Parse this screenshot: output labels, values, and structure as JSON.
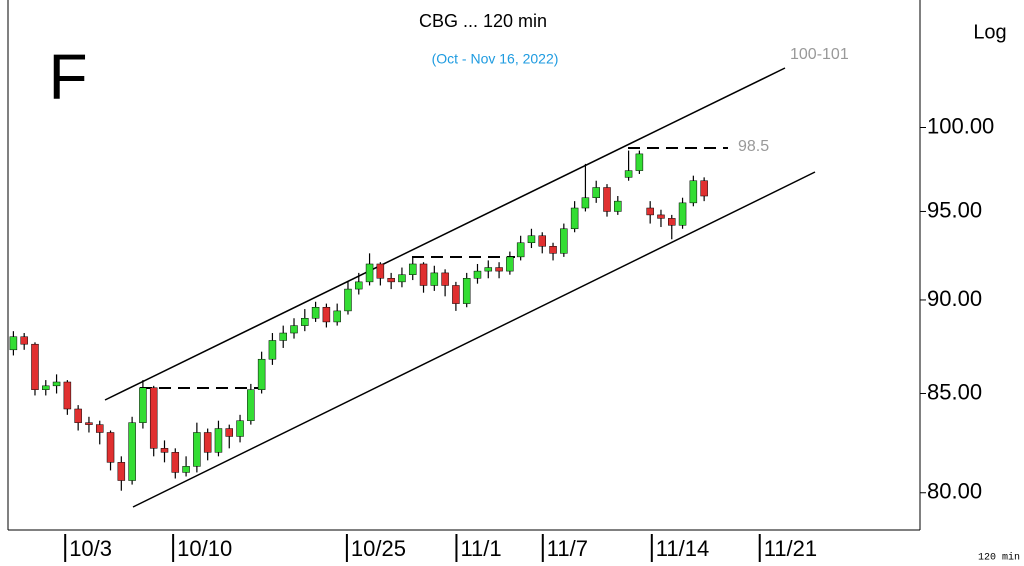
{
  "chart_data": {
    "type": "candlestick",
    "title": "CBG ... 120 min",
    "subtitle": "(Oct - Nov 16, 2022)",
    "panel_letter": "F",
    "scale_label": "Log",
    "interval_label": "120 min",
    "log_scale": true,
    "up_color": "#33dd33",
    "down_color": "#e03030",
    "annotations": [
      "100-101",
      "98.5"
    ],
    "xlim": [
      0,
      169
    ],
    "xticks": [
      {
        "value": 10.6,
        "label": "10/3"
      },
      {
        "value": 30.6,
        "label": "10/10"
      },
      {
        "value": 62.8,
        "label": "10/25"
      },
      {
        "value": 83.1,
        "label": "11/1"
      },
      {
        "value": 99.1,
        "label": "11/7"
      },
      {
        "value": 119.3,
        "label": "11/14"
      },
      {
        "value": 139.3,
        "label": "11/21"
      }
    ],
    "ylim": [
      78.2,
      108.1
    ],
    "yticks": [
      {
        "value": 80,
        "label": "80.00"
      },
      {
        "value": 85,
        "label": "85.00"
      },
      {
        "value": 90,
        "label": "90.00"
      },
      {
        "value": 95,
        "label": "95.00"
      },
      {
        "value": 100,
        "label": "100.00"
      }
    ],
    "x": [
      1,
      3,
      5,
      7,
      9,
      11,
      13,
      15,
      17,
      19,
      21,
      23,
      25,
      27,
      29,
      31,
      33,
      35,
      37,
      39,
      41,
      43,
      45,
      47,
      49,
      51,
      53,
      55,
      57,
      59,
      61,
      63,
      65,
      67,
      69,
      71,
      73,
      75,
      77,
      79,
      81,
      83,
      85,
      87,
      89,
      91,
      93,
      95,
      97,
      99,
      101,
      103,
      105,
      107,
      109,
      111,
      113,
      115,
      117,
      119,
      121,
      123,
      125,
      127,
      129
    ],
    "open": [
      87.3,
      88.0,
      87.6,
      85.2,
      85.4,
      85.6,
      84.2,
      83.5,
      83.4,
      83.0,
      81.5,
      80.6,
      83.5,
      85.3,
      82.2,
      82.0,
      81.0,
      81.3,
      83.0,
      82.0,
      83.2,
      82.8,
      83.6,
      85.2,
      86.8,
      87.8,
      88.2,
      88.6,
      89.0,
      89.6,
      88.8,
      89.4,
      90.6,
      91.0,
      92.0,
      91.2,
      91.0,
      91.4,
      92.0,
      90.8,
      91.5,
      90.8,
      89.8,
      91.2,
      91.6,
      91.8,
      91.6,
      92.4,
      93.2,
      93.6,
      93.0,
      92.6,
      94.0,
      95.2,
      95.8,
      96.4,
      95.0,
      97.0,
      97.4,
      95.2,
      94.8,
      94.6,
      94.2,
      95.5,
      96.8
    ],
    "high": [
      88.3,
      88.2,
      87.7,
      85.7,
      86.0,
      85.7,
      84.4,
      83.8,
      83.6,
      83.1,
      81.8,
      83.8,
      85.7,
      85.4,
      82.6,
      82.2,
      81.8,
      83.5,
      83.2,
      83.6,
      83.4,
      83.9,
      85.5,
      87.2,
      88.2,
      88.6,
      89.0,
      89.5,
      89.9,
      89.8,
      89.8,
      91.0,
      91.5,
      92.6,
      92.1,
      91.5,
      91.8,
      92.4,
      92.1,
      91.9,
      91.7,
      91.0,
      91.5,
      92.0,
      92.2,
      92.1,
      92.7,
      93.6,
      94.0,
      93.8,
      93.2,
      94.3,
      95.6,
      97.8,
      96.8,
      96.6,
      95.9,
      98.6,
      98.6,
      95.6,
      95.1,
      94.8,
      95.8,
      97.1,
      97.0
    ],
    "low": [
      87.0,
      87.3,
      84.9,
      84.9,
      85.0,
      83.9,
      83.1,
      83.0,
      82.4,
      81.1,
      80.1,
      80.4,
      83.2,
      81.8,
      81.5,
      80.7,
      80.8,
      81.0,
      81.6,
      81.8,
      82.2,
      82.5,
      83.4,
      85.0,
      86.5,
      87.4,
      87.9,
      88.3,
      88.8,
      88.5,
      88.6,
      89.2,
      90.3,
      90.8,
      90.8,
      90.6,
      90.7,
      91.1,
      90.4,
      90.5,
      90.2,
      89.4,
      89.6,
      90.9,
      91.2,
      91.2,
      91.4,
      92.2,
      92.9,
      92.6,
      92.2,
      92.4,
      93.8,
      95.0,
      95.5,
      94.7,
      94.8,
      96.8,
      97.2,
      94.3,
      94.1,
      93.4,
      94.0,
      95.3,
      95.6
    ],
    "close": [
      88.0,
      87.6,
      85.2,
      85.4,
      85.6,
      84.2,
      83.5,
      83.4,
      83.0,
      81.5,
      80.6,
      83.5,
      85.3,
      82.2,
      82.0,
      81.0,
      81.3,
      83.0,
      82.0,
      83.2,
      82.8,
      83.6,
      85.2,
      86.8,
      87.8,
      88.2,
      88.6,
      89.0,
      89.6,
      88.8,
      89.4,
      90.6,
      91.0,
      92.0,
      91.2,
      91.0,
      91.4,
      92.0,
      90.8,
      91.5,
      90.8,
      89.8,
      91.2,
      91.6,
      91.8,
      91.6,
      92.4,
      93.2,
      93.6,
      93.0,
      92.6,
      94.0,
      95.2,
      95.8,
      96.4,
      95.0,
      95.6,
      97.4,
      98.4,
      94.8,
      94.6,
      94.2,
      95.5,
      96.8,
      95.9
    ]
  }
}
